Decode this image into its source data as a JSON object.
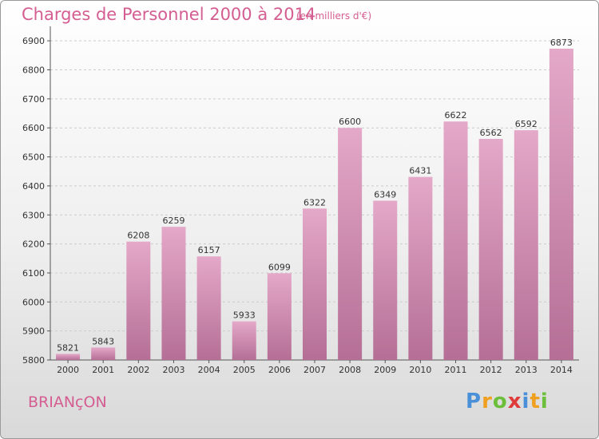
{
  "header": {
    "title": "Charges de Personnel 2000 à 2014",
    "subtitle": "(en milliers d'€)"
  },
  "footer": {
    "commune": "BRIANçON",
    "logo_text": "Proxiti"
  },
  "colors": {
    "title": "#d45d91",
    "bar_top": "#e4a8c8",
    "bar_bottom": "#b56f96",
    "grid": "#cccccc"
  },
  "chart_data": {
    "type": "bar",
    "title": "Charges de Personnel 2000 à 2014",
    "subtitle": "(en milliers d'€)",
    "categories": [
      "2000",
      "2001",
      "2002",
      "2003",
      "2004",
      "2005",
      "2006",
      "2007",
      "2008",
      "2009",
      "2010",
      "2011",
      "2012",
      "2013",
      "2014"
    ],
    "values": [
      5821,
      5843,
      6208,
      6259,
      6157,
      5933,
      6099,
      6322,
      6600,
      6349,
      6431,
      6622,
      6562,
      6592,
      6873
    ],
    "data_labels": [
      "5821",
      "5843",
      "6208",
      "6259",
      "6157",
      "5933",
      "6099",
      "6322",
      "6600",
      "6349",
      "6431",
      "6622",
      "6562",
      "6592",
      "6873"
    ],
    "y_ticks": [
      "5800",
      "5900",
      "6000",
      "6100",
      "6200",
      "6300",
      "6400",
      "6500",
      "6600",
      "6700",
      "6800",
      "6900"
    ],
    "ylim": [
      5800,
      6950
    ],
    "grid": true,
    "xlabel": "",
    "ylabel": ""
  }
}
